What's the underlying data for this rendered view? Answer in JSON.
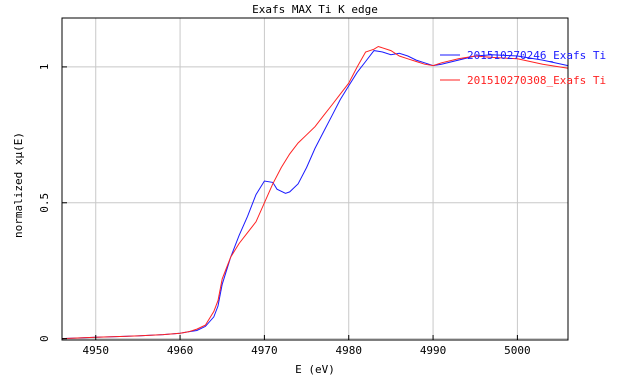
{
  "colors": {
    "series_blue": "#1a1aff",
    "series_red": "#ff2222",
    "grid": "#c8c8c8",
    "frame": "#000000"
  },
  "chart_data": {
    "type": "line",
    "title": "Exafs MAX Ti K edge",
    "xlabel": "E (eV)",
    "ylabel": "normalized xμ(E)",
    "xlim": [
      4946,
      5006
    ],
    "ylim": [
      -0.005,
      1.18
    ],
    "grid": true,
    "legend_position": "top-right",
    "x_ticks": [
      4950,
      4960,
      4970,
      4980,
      4990,
      5000
    ],
    "x_tick_labels": [
      "4950",
      "4960",
      "4970",
      "4980",
      "4990",
      "5000"
    ],
    "y_ticks": [
      0,
      0.5,
      1
    ],
    "y_tick_labels": [
      "0",
      "0.5",
      "1"
    ],
    "series": [
      {
        "name": "201510270246_Exafs Ti",
        "color": "#1a1aff",
        "points": [
          [
            4946,
            0.0
          ],
          [
            4950,
            0.005
          ],
          [
            4955,
            0.01
          ],
          [
            4958,
            0.015
          ],
          [
            4960,
            0.02
          ],
          [
            4961,
            0.025
          ],
          [
            4962,
            0.03
          ],
          [
            4963,
            0.045
          ],
          [
            4964,
            0.08
          ],
          [
            4964.5,
            0.12
          ],
          [
            4965,
            0.2
          ],
          [
            4966,
            0.3
          ],
          [
            4967,
            0.38
          ],
          [
            4968,
            0.45
          ],
          [
            4969,
            0.53
          ],
          [
            4970,
            0.58
          ],
          [
            4971,
            0.575
          ],
          [
            4971.5,
            0.55
          ],
          [
            4972.5,
            0.535
          ],
          [
            4973,
            0.54
          ],
          [
            4974,
            0.57
          ],
          [
            4975,
            0.63
          ],
          [
            4976,
            0.7
          ],
          [
            4977,
            0.76
          ],
          [
            4978,
            0.82
          ],
          [
            4979,
            0.88
          ],
          [
            4980,
            0.93
          ],
          [
            4981,
            0.98
          ],
          [
            4982,
            1.02
          ],
          [
            4983,
            1.06
          ],
          [
            4984,
            1.055
          ],
          [
            4985,
            1.045
          ],
          [
            4986,
            1.05
          ],
          [
            4987,
            1.04
          ],
          [
            4988,
            1.025
          ],
          [
            4989,
            1.015
          ],
          [
            4990,
            1.005
          ],
          [
            4991,
            1.01
          ],
          [
            4993,
            1.025
          ],
          [
            4995,
            1.04
          ],
          [
            4997,
            1.045
          ],
          [
            5000,
            1.04
          ],
          [
            5003,
            1.025
          ],
          [
            5006,
            1.005
          ]
        ]
      },
      {
        "name": "201510270308_Exafs Ti",
        "color": "#ff2222",
        "points": [
          [
            4946,
            0.0
          ],
          [
            4950,
            0.005
          ],
          [
            4955,
            0.01
          ],
          [
            4958,
            0.015
          ],
          [
            4960,
            0.02
          ],
          [
            4961,
            0.025
          ],
          [
            4962,
            0.035
          ],
          [
            4963,
            0.05
          ],
          [
            4964,
            0.1
          ],
          [
            4964.5,
            0.14
          ],
          [
            4965,
            0.22
          ],
          [
            4966,
            0.3
          ],
          [
            4967,
            0.35
          ],
          [
            4968,
            0.39
          ],
          [
            4969,
            0.43
          ],
          [
            4970,
            0.5
          ],
          [
            4971,
            0.57
          ],
          [
            4972,
            0.63
          ],
          [
            4973,
            0.68
          ],
          [
            4974,
            0.72
          ],
          [
            4975,
            0.75
          ],
          [
            4976,
            0.78
          ],
          [
            4977,
            0.82
          ],
          [
            4978,
            0.86
          ],
          [
            4979,
            0.9
          ],
          [
            4980,
            0.94
          ],
          [
            4981,
            1.0
          ],
          [
            4982,
            1.055
          ],
          [
            4983,
            1.065
          ],
          [
            4983.5,
            1.075
          ],
          [
            4985,
            1.06
          ],
          [
            4986,
            1.04
          ],
          [
            4987,
            1.03
          ],
          [
            4988,
            1.02
          ],
          [
            4989,
            1.01
          ],
          [
            4990,
            1.005
          ],
          [
            4991,
            1.015
          ],
          [
            4993,
            1.03
          ],
          [
            4995,
            1.04
          ],
          [
            4997,
            1.035
          ],
          [
            5000,
            1.03
          ],
          [
            5003,
            1.01
          ],
          [
            5006,
            0.995
          ]
        ]
      }
    ]
  }
}
